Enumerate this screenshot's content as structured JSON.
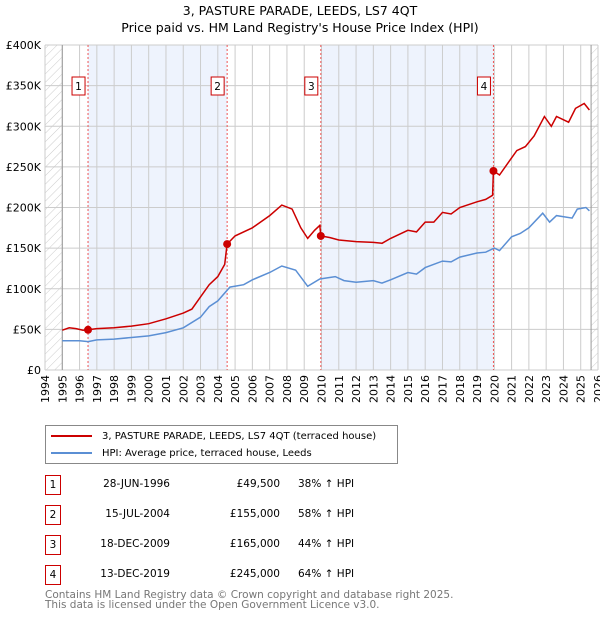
{
  "chart_data": {
    "type": "line",
    "title": "3, PASTURE PARADE, LEEDS, LS7 4QT",
    "subtitle": "Price paid vs. HM Land Registry's House Price Index (HPI)",
    "xlim": [
      1994,
      2026
    ],
    "ylim": [
      0,
      400000
    ],
    "x_ticks": [
      "1994",
      "1995",
      "1996",
      "1997",
      "1998",
      "1999",
      "2000",
      "2001",
      "2002",
      "2003",
      "2004",
      "2005",
      "2006",
      "2007",
      "2008",
      "2009",
      "2010",
      "2011",
      "2012",
      "2013",
      "2014",
      "2015",
      "2016",
      "2017",
      "2018",
      "2019",
      "2020",
      "2021",
      "2022",
      "2023",
      "2024",
      "2025",
      "2026"
    ],
    "y_ticks": [
      {
        "v": 0,
        "label": "£0"
      },
      {
        "v": 50000,
        "label": "£50K"
      },
      {
        "v": 100000,
        "label": "£100K"
      },
      {
        "v": 150000,
        "label": "£150K"
      },
      {
        "v": 200000,
        "label": "£200K"
      },
      {
        "v": 250000,
        "label": "£250K"
      },
      {
        "v": 300000,
        "label": "£300K"
      },
      {
        "v": 350000,
        "label": "£350K"
      },
      {
        "v": 400000,
        "label": "£400K"
      }
    ],
    "grid": true,
    "data_start": 1995,
    "data_end": 2025.6,
    "series": [
      {
        "name": "3, PASTURE PARADE, LEEDS, LS7 4QT (terraced house)",
        "color": "#cc0000",
        "x": [
          1995,
          1995.4,
          1995.8,
          1996.2,
          1996.49,
          1997,
          1998,
          1999,
          2000,
          2001,
          2002,
          2002.5,
          2003,
          2003.5,
          2004,
          2004.4,
          2004.54,
          2005,
          2006,
          2007,
          2007.7,
          2008.3,
          2008.8,
          2009.2,
          2009.6,
          2009.9,
          2009.96,
          2010.5,
          2011,
          2012,
          2013,
          2013.5,
          2014,
          2015,
          2015.5,
          2016,
          2016.5,
          2017,
          2017.5,
          2018,
          2019,
          2019.5,
          2019.9,
          2019.95,
          2020.3,
          2020.8,
          2021.3,
          2021.8,
          2022.3,
          2022.9,
          2023.3,
          2023.6,
          2024.3,
          2024.7,
          2025.2,
          2025.5
        ],
        "y": [
          49000,
          52000,
          51000,
          49000,
          49500,
          51000,
          52000,
          54000,
          57000,
          63000,
          70000,
          75000,
          90000,
          105000,
          115000,
          130000,
          155000,
          165000,
          175000,
          190000,
          203000,
          198000,
          175000,
          162000,
          172000,
          178000,
          165000,
          163000,
          160000,
          158000,
          157000,
          156000,
          162000,
          172000,
          170000,
          182000,
          182000,
          194000,
          192000,
          200000,
          207000,
          210000,
          215000,
          245000,
          240000,
          255000,
          270000,
          275000,
          288000,
          312000,
          300000,
          312000,
          305000,
          322000,
          328000,
          320000
        ]
      },
      {
        "name": "HPI: Average price, terraced house, Leeds",
        "color": "#5b8fd4",
        "x": [
          1995,
          1996,
          1996.5,
          1997,
          1998,
          1999,
          2000,
          2001,
          2002,
          2003,
          2003.5,
          2004,
          2004.7,
          2005.5,
          2006,
          2007,
          2007.7,
          2008.5,
          2009.2,
          2009.9,
          2010.8,
          2011.3,
          2012,
          2013,
          2013.5,
          2014,
          2015,
          2015.5,
          2016,
          2017,
          2017.5,
          2018,
          2019,
          2019.5,
          2020,
          2020.3,
          2021,
          2021.5,
          2022,
          2022.8,
          2023.2,
          2023.6,
          2024.5,
          2024.8,
          2025.3,
          2025.5
        ],
        "y": [
          36000,
          36000,
          35000,
          37000,
          38000,
          40000,
          42000,
          46000,
          52000,
          65000,
          78000,
          85000,
          102000,
          105000,
          111000,
          120000,
          128000,
          123000,
          103000,
          112000,
          115000,
          110000,
          108000,
          110000,
          107000,
          111000,
          120000,
          118000,
          126000,
          134000,
          133000,
          139000,
          144000,
          145000,
          150000,
          147000,
          164000,
          168000,
          175000,
          193000,
          182000,
          190000,
          187000,
          198000,
          200000,
          196000
        ]
      }
    ],
    "sales": [
      {
        "label": "1",
        "x": 1996.49,
        "y": 49500
      },
      {
        "label": "2",
        "x": 2004.54,
        "y": 155000
      },
      {
        "label": "3",
        "x": 2009.96,
        "y": 165000
      },
      {
        "label": "4",
        "x": 2019.95,
        "y": 245000
      }
    ],
    "legend_placement": "bottom"
  },
  "transactions": [
    {
      "num": "1",
      "date": "28-JUN-1996",
      "price": "£49,500",
      "hpi": "38% ↑ HPI"
    },
    {
      "num": "2",
      "date": "15-JUL-2004",
      "price": "£155,000",
      "hpi": "58% ↑ HPI"
    },
    {
      "num": "3",
      "date": "18-DEC-2009",
      "price": "£165,000",
      "hpi": "44% ↑ HPI"
    },
    {
      "num": "4",
      "date": "13-DEC-2019",
      "price": "£245,000",
      "hpi": "64% ↑ HPI"
    }
  ],
  "footer": {
    "line1": "Contains HM Land Registry data © Crown copyright and database right 2025.",
    "line2": "This data is licensed under the Open Government Licence v3.0."
  }
}
